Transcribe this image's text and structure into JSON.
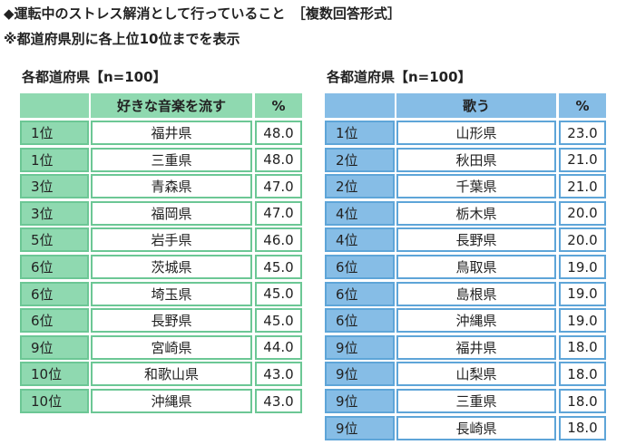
{
  "header": {
    "title": "◆運転中のストレス解消として行っていること　［複数回答形式］",
    "note": "※都道府県別に各上位10位までを表示"
  },
  "tables": [
    {
      "caption": "各都道府県【n=100】",
      "columns": [
        "好きな音楽を流す",
        "%"
      ],
      "rows": [
        [
          "1位",
          "福井県",
          "48.0"
        ],
        [
          "1位",
          "三重県",
          "48.0"
        ],
        [
          "3位",
          "青森県",
          "47.0"
        ],
        [
          "3位",
          "福岡県",
          "47.0"
        ],
        [
          "5位",
          "岩手県",
          "46.0"
        ],
        [
          "6位",
          "茨城県",
          "45.0"
        ],
        [
          "6位",
          "埼玉県",
          "45.0"
        ],
        [
          "6位",
          "長野県",
          "45.0"
        ],
        [
          "9位",
          "宮崎県",
          "44.0"
        ],
        [
          "10位",
          "和歌山県",
          "43.0"
        ],
        [
          "10位",
          "沖縄県",
          "43.0"
        ]
      ]
    },
    {
      "caption": "各都道府県【n=100】",
      "columns": [
        "歌う",
        "%"
      ],
      "rows": [
        [
          "1位",
          "山形県",
          "23.0"
        ],
        [
          "2位",
          "秋田県",
          "21.0"
        ],
        [
          "2位",
          "千葉県",
          "21.0"
        ],
        [
          "4位",
          "栃木県",
          "20.0"
        ],
        [
          "4位",
          "長野県",
          "20.0"
        ],
        [
          "6位",
          "鳥取県",
          "19.0"
        ],
        [
          "6位",
          "島根県",
          "19.0"
        ],
        [
          "6位",
          "沖縄県",
          "19.0"
        ],
        [
          "9位",
          "福井県",
          "18.0"
        ],
        [
          "9位",
          "山梨県",
          "18.0"
        ],
        [
          "9位",
          "三重県",
          "18.0"
        ],
        [
          "9位",
          "長崎県",
          "18.0"
        ]
      ]
    }
  ]
}
